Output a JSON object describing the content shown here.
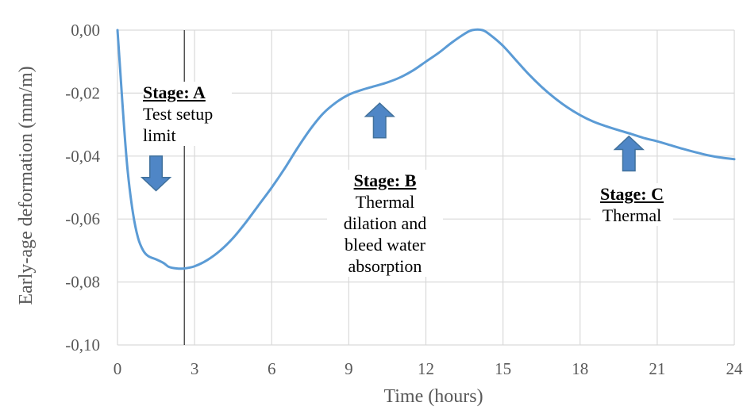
{
  "chart_data": {
    "type": "line",
    "xlabel": "Time (hours)",
    "ylabel": "Early-age deformation (mm/m)",
    "xlim": [
      0,
      24
    ],
    "ylim": [
      -0.1,
      0.0
    ],
    "x_ticks": [
      "0",
      "3",
      "6",
      "9",
      "12",
      "15",
      "18",
      "21",
      "24"
    ],
    "x_tick_values": [
      0,
      3,
      6,
      9,
      12,
      15,
      18,
      21,
      24
    ],
    "y_ticks": [
      "0,00",
      "-0,02",
      "-0,04",
      "-0,06",
      "-0,08",
      "-0,10"
    ],
    "y_tick_values": [
      0,
      -0.02,
      -0.04,
      -0.06,
      -0.08,
      -0.1
    ],
    "grid": true,
    "line_color": "#5b9bd5",
    "arrow_color": "#4f86c6",
    "vertical_marker_x": 2.6,
    "series": [
      {
        "x": [
          0,
          0.1,
          0.25,
          0.4,
          0.6,
          0.8,
          1.0,
          1.2,
          1.5,
          1.8,
          2.0,
          2.3,
          2.6,
          3.0,
          3.5,
          4.0,
          4.5,
          5.0,
          5.5,
          6.0,
          6.5,
          7.0,
          7.5,
          8.0,
          8.5,
          9.0,
          9.5,
          10.0,
          10.5,
          11.0,
          11.5,
          12.0,
          12.5,
          13.0,
          13.5,
          13.8,
          14.2,
          14.5,
          15.0,
          15.5,
          16.0,
          16.5,
          17.0,
          17.5,
          18.0,
          18.5,
          19.0,
          19.5,
          20.0,
          20.5,
          21.0,
          21.5,
          22.0,
          22.5,
          23.0,
          23.5,
          24.0
        ],
        "y": [
          0.0,
          -0.012,
          -0.03,
          -0.045,
          -0.058,
          -0.066,
          -0.07,
          -0.0718,
          -0.0728,
          -0.074,
          -0.0752,
          -0.0757,
          -0.0757,
          -0.075,
          -0.073,
          -0.07,
          -0.066,
          -0.061,
          -0.0555,
          -0.05,
          -0.044,
          -0.0375,
          -0.0315,
          -0.0265,
          -0.023,
          -0.0205,
          -0.019,
          -0.0178,
          -0.0166,
          -0.015,
          -0.0128,
          -0.01,
          -0.0072,
          -0.004,
          -0.0012,
          0.0,
          0.0,
          -0.0015,
          -0.005,
          -0.0095,
          -0.014,
          -0.018,
          -0.0215,
          -0.0245,
          -0.027,
          -0.029,
          -0.0305,
          -0.0318,
          -0.033,
          -0.0343,
          -0.0353,
          -0.0365,
          -0.0377,
          -0.0388,
          -0.0398,
          -0.0405,
          -0.041
        ]
      }
    ],
    "annotations": [
      {
        "heading": "Stage: A",
        "text": "Test setup\nlimit",
        "arrow_direction": "down",
        "arrow_x": 1.5,
        "arrow_y": -0.0455
      },
      {
        "heading": "Stage: B",
        "text": "Thermal\ndilation and\nbleed water\nabsorption",
        "arrow_direction": "up",
        "arrow_x": 10.2,
        "arrow_y": -0.0287
      },
      {
        "heading": "Stage: C",
        "text": "Thermal",
        "arrow_direction": "up",
        "arrow_x": 19.9,
        "arrow_y": -0.0392
      }
    ]
  }
}
